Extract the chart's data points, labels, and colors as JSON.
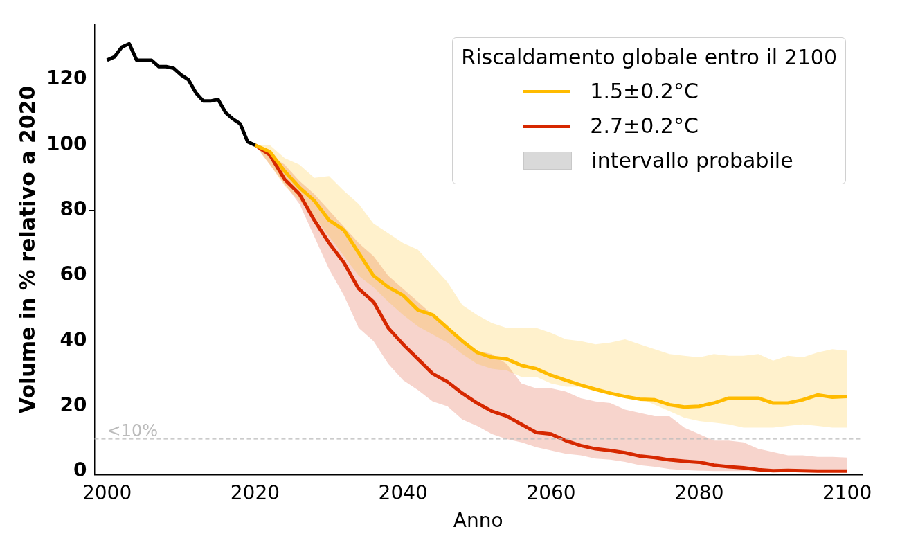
{
  "chart_data": {
    "type": "line",
    "xlabel": "Anno",
    "ylabel": "Volume in % relativo a 2020",
    "legend_title": "Riscaldamento globale entro il 2100",
    "legend": "top right",
    "grid": false,
    "marker": "none",
    "line_style": "solid",
    "xlim": [
      1998.3,
      2102
    ],
    "xticks": [
      2000,
      2020,
      2040,
      2060,
      2080,
      2100
    ],
    "ylim": [
      -1,
      137
    ],
    "yticks": [
      0,
      20,
      40,
      60,
      80,
      100,
      120
    ],
    "annotations": [
      "intervallo probabile"
    ],
    "ref_lines": [
      {
        "axis": "y",
        "value": 10,
        "label": "<10%",
        "color": "#bbbbbb",
        "line_style": "dashed"
      }
    ],
    "series": [
      {
        "color": "#000000",
        "x": [
          2000,
          2001,
          2002,
          2003,
          2004,
          2005,
          2006,
          2007,
          2008,
          2009,
          2010,
          2011,
          2012,
          2013,
          2014,
          2015,
          2016,
          2017,
          2018,
          2019,
          2020
        ],
        "values": [
          126,
          127,
          130,
          131,
          126,
          126,
          126,
          124,
          124,
          123.5,
          121.5,
          120,
          116,
          113.5,
          113.5,
          114,
          110,
          108,
          106.5,
          101,
          100
        ]
      },
      {
        "name": "1.5±0.2°C",
        "color": "#ffbb00",
        "x": [
          2020,
          2022,
          2024,
          2026,
          2028,
          2030,
          2032,
          2034,
          2036,
          2038,
          2040,
          2042,
          2044,
          2046,
          2048,
          2050,
          2052,
          2054,
          2056,
          2058,
          2060,
          2062,
          2064,
          2066,
          2068,
          2070,
          2072,
          2074,
          2076,
          2078,
          2080,
          2082,
          2084,
          2086,
          2088,
          2090,
          2092,
          2094,
          2096,
          2098,
          2100
        ],
        "values": [
          100,
          98,
          92,
          87,
          83,
          77,
          74,
          67,
          60,
          56.5,
          54,
          49.5,
          48,
          44,
          40,
          36.5,
          35,
          34.5,
          32.5,
          31.5,
          29.5,
          28,
          26.5,
          25.2,
          24,
          23,
          22.2,
          22,
          20.5,
          19.8,
          20,
          21,
          22.5,
          22.5,
          22.5,
          21,
          21,
          22,
          23.5,
          22.8,
          23
        ],
        "upper": [
          100,
          100,
          96,
          94,
          90,
          90.5,
          86,
          82,
          76,
          73,
          70,
          68,
          63,
          58,
          51,
          48,
          45.5,
          44,
          44,
          44,
          42.5,
          40.5,
          40,
          39,
          39.5,
          40.5,
          39,
          37.5,
          36,
          35.5,
          35,
          36,
          35.5,
          35.5,
          36,
          34,
          35.5,
          35,
          36.5,
          37.5,
          37
        ],
        "lower": [
          100,
          94,
          87.5,
          83,
          78,
          72,
          66,
          60,
          56.5,
          52,
          48,
          44.5,
          42,
          39.5,
          36,
          33,
          31.5,
          31,
          29,
          29,
          27,
          26,
          26,
          25,
          24,
          23,
          22.5,
          20.5,
          18.5,
          16.5,
          15.5,
          15,
          14.5,
          13.5,
          13.5,
          13.5,
          14,
          14.5,
          14,
          13.5,
          13.5
        ]
      },
      {
        "name": "2.7±0.2°C",
        "color": "#d62800",
        "x": [
          2020,
          2022,
          2024,
          2026,
          2028,
          2030,
          2032,
          2034,
          2036,
          2038,
          2040,
          2042,
          2044,
          2046,
          2048,
          2050,
          2052,
          2054,
          2056,
          2058,
          2060,
          2062,
          2064,
          2066,
          2068,
          2070,
          2072,
          2074,
          2076,
          2078,
          2080,
          2082,
          2084,
          2086,
          2088,
          2090,
          2092,
          2094,
          2096,
          2098,
          2100
        ],
        "values": [
          100,
          97,
          89.5,
          85,
          77,
          70,
          64,
          56,
          52,
          44,
          39,
          34.5,
          30,
          27.5,
          24,
          21,
          18.5,
          17,
          14.5,
          12,
          11.5,
          9.5,
          8,
          7,
          6.5,
          5.8,
          4.8,
          4.3,
          3.6,
          3.2,
          2.9,
          2,
          1.5,
          1.2,
          0.6,
          0.3,
          0.4,
          0.3,
          0.2,
          0.2,
          0.2
        ],
        "upper": [
          100,
          97,
          94,
          89,
          85,
          80,
          75,
          70,
          66,
          60,
          56,
          52,
          48,
          44,
          40,
          37,
          36,
          33,
          27,
          25.5,
          25.5,
          24.5,
          22.5,
          21.5,
          21,
          19,
          18,
          17,
          17,
          13.5,
          11.5,
          9.5,
          9.5,
          9,
          7,
          6,
          5,
          5,
          4.5,
          4.5,
          4.3
        ],
        "lower": [
          100,
          94,
          88,
          82,
          72,
          62,
          54,
          44,
          40,
          33,
          28,
          25,
          21.5,
          20,
          16,
          14,
          11.5,
          10,
          9,
          7.5,
          6.5,
          5.5,
          5,
          4,
          3.7,
          3,
          2,
          1.5,
          0.8,
          0.5,
          0.3,
          0.2,
          0.2,
          0.2,
          0.1,
          0.1,
          0.1,
          0.1,
          0.1,
          0.1,
          0.1
        ]
      }
    ]
  }
}
